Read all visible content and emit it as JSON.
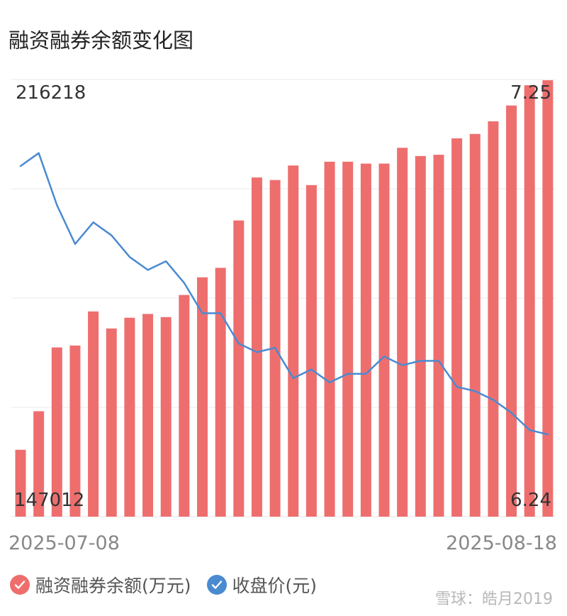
{
  "title": "融资融券余额变化图",
  "chart_data": {
    "type": "bar+line",
    "left_axis": {
      "max_label": "216218",
      "min_label": "147012",
      "range": [
        147012,
        216218
      ]
    },
    "right_axis": {
      "max_label": "7.25",
      "min_label": "6.24",
      "range": [
        6.24,
        7.25
      ]
    },
    "x_start_label": "2025-07-08",
    "x_end_label": "2025-08-18",
    "grid": true,
    "legend_position": "bottom",
    "series": [
      {
        "name": "融资融券余额(万元)",
        "type": "bar",
        "color": "#ee6e6e",
        "values": [
          157600,
          163700,
          173800,
          174100,
          179500,
          176800,
          178500,
          179100,
          178600,
          182100,
          184900,
          186400,
          193900,
          200700,
          200300,
          202600,
          199500,
          203200,
          203200,
          202900,
          202900,
          205400,
          204100,
          204300,
          206900,
          207600,
          209600,
          212100,
          215300,
          216100
        ]
      },
      {
        "name": "收盘价(元)",
        "type": "line",
        "color": "#4a8ad0",
        "values": [
          7.05,
          7.08,
          6.96,
          6.87,
          6.92,
          6.89,
          6.84,
          6.81,
          6.83,
          6.78,
          6.71,
          6.71,
          6.64,
          6.62,
          6.63,
          6.56,
          6.58,
          6.55,
          6.57,
          6.57,
          6.61,
          6.59,
          6.6,
          6.6,
          6.54,
          6.53,
          6.51,
          6.48,
          6.44,
          6.43
        ]
      }
    ]
  },
  "legend": [
    {
      "label": "融资融券余额(万元)",
      "color": "#ee6e6e"
    },
    {
      "label": "收盘价(元)",
      "color": "#4a8ad0"
    }
  ],
  "watermark": "雪球：皓月2019"
}
